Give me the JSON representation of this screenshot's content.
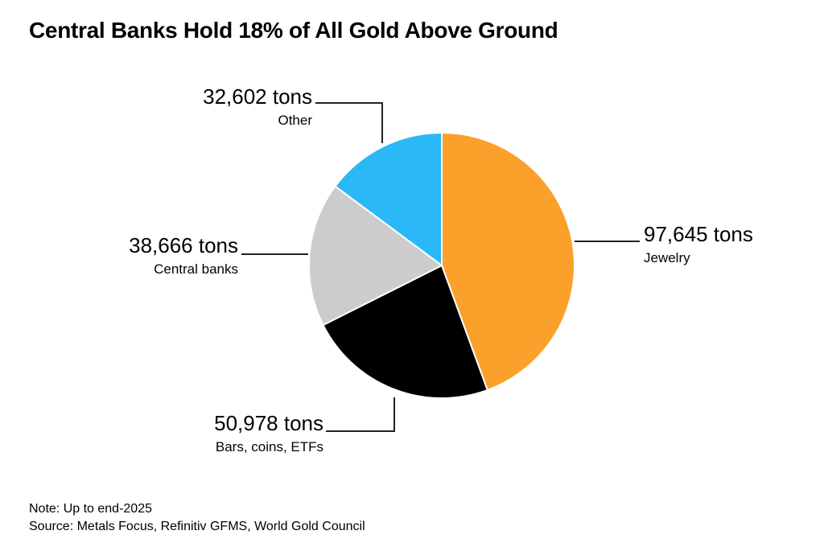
{
  "chart_data": {
    "type": "pie",
    "title": "Central Banks Hold 18% of All Gold Above Ground",
    "unit": "tons",
    "slices": [
      {
        "label": "Jewelry",
        "value": 97645,
        "value_label": "97,645 tons",
        "color": "#fba02a"
      },
      {
        "label": "Bars, coins, ETFs",
        "value": 50978,
        "value_label": "50,978 tons",
        "color": "#000000"
      },
      {
        "label": "Central banks",
        "value": 38666,
        "value_label": "38,666 tons",
        "color": "#cccccc"
      },
      {
        "label": "Other",
        "value": 32602,
        "value_label": "32,602 tons",
        "color": "#2ab8f6"
      }
    ],
    "start_angle": "12 o'clock",
    "direction": "clockwise",
    "legend": "none (callout labels)"
  },
  "footer": {
    "note": "Note: Up to end-2025",
    "source": "Source: Metals Focus, Refinitiv GFMS, World Gold Council"
  }
}
